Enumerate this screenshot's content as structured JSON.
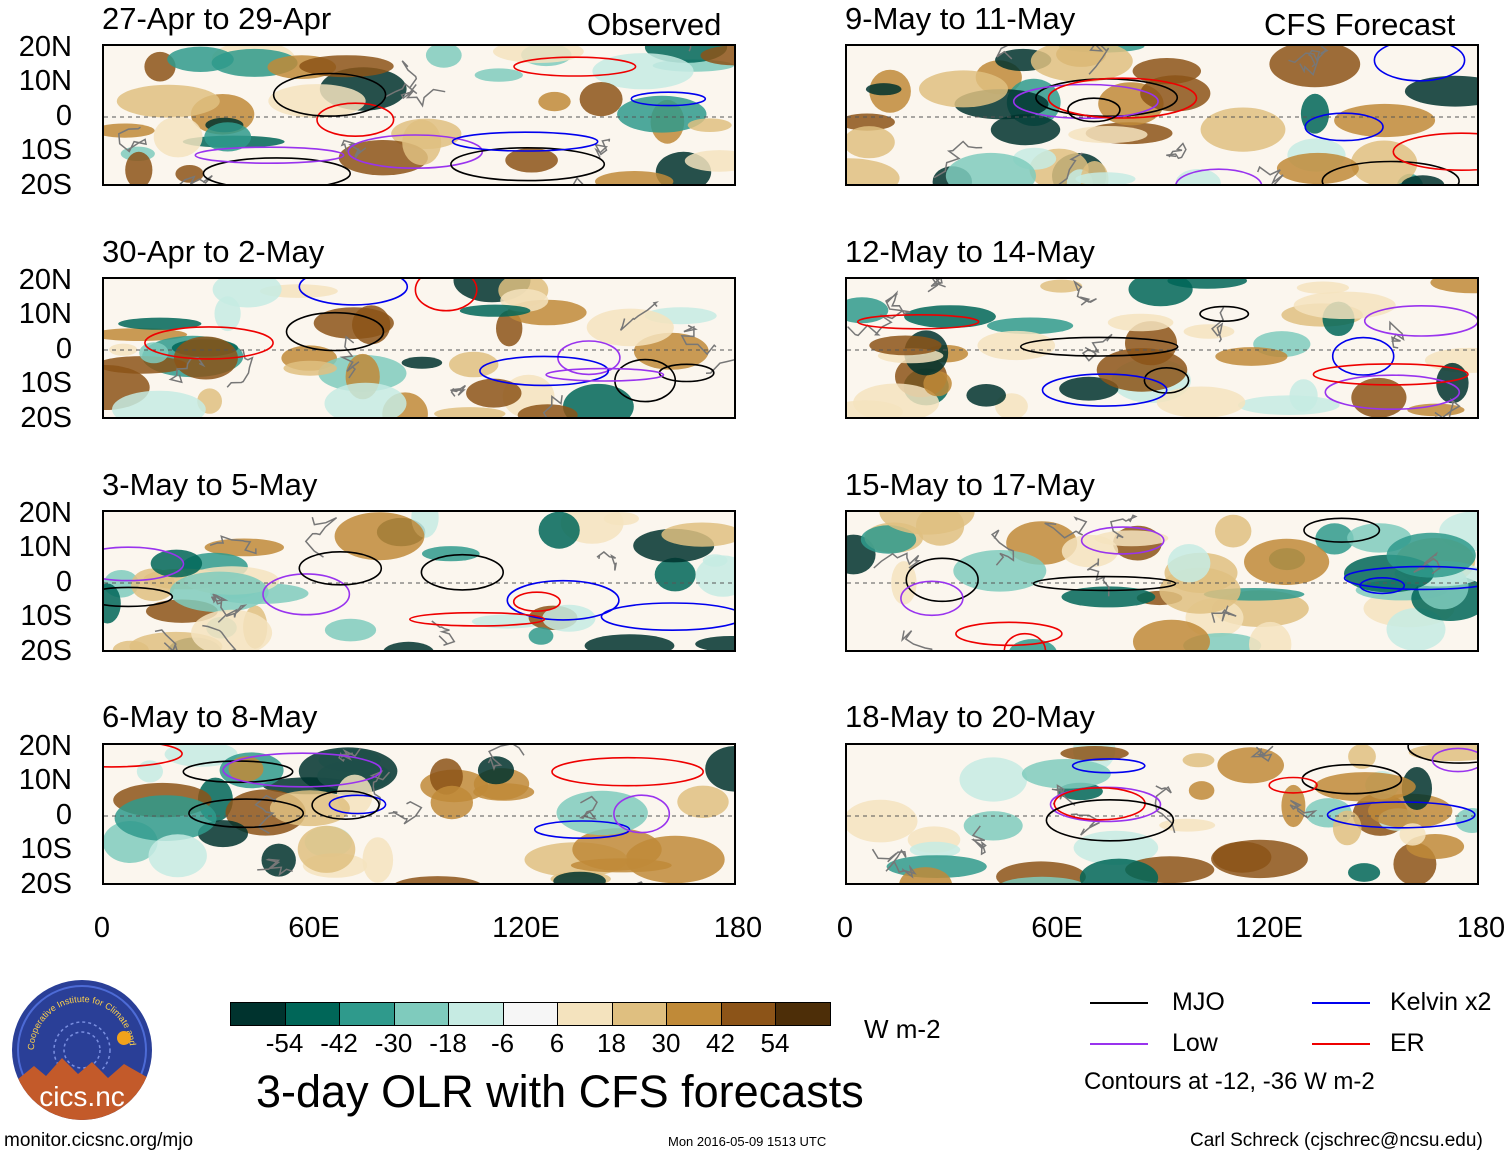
{
  "headers": {
    "left": "Observed",
    "right": "CFS Forecast"
  },
  "latitude_labels": [
    "20N",
    "10N",
    "0",
    "10S",
    "20S"
  ],
  "longitude_labels": [
    "0",
    "60E",
    "120E",
    "180"
  ],
  "panels": {
    "left": [
      {
        "title": "27-Apr to 29-Apr"
      },
      {
        "title": "30-Apr to 2-May"
      },
      {
        "title": "3-May to 5-May"
      },
      {
        "title": "6-May to 8-May"
      }
    ],
    "right": [
      {
        "title": "9-May to 11-May"
      },
      {
        "title": "12-May to 14-May"
      },
      {
        "title": "15-May to 17-May"
      },
      {
        "title": "18-May to 20-May"
      }
    ]
  },
  "colorbar": {
    "ticks": [
      "-54",
      "-42",
      "-30",
      "-18",
      "-6",
      "6",
      "18",
      "30",
      "42",
      "54"
    ],
    "colors": [
      "#00332e",
      "#006658",
      "#2f9a8c",
      "#7fcbbd",
      "#c6ebe3",
      "#f6f6f6",
      "#f4e3be",
      "#dfbf80",
      "#c08a38",
      "#8c5418",
      "#4d2e08"
    ],
    "units": "W m-2"
  },
  "title": "3-day OLR with CFS forecasts",
  "legend": {
    "items": [
      {
        "label": "MJO",
        "color": "#000000"
      },
      {
        "label": "Kelvin x2",
        "color": "#0000ee"
      },
      {
        "label": "Low",
        "color": "#9933ee"
      },
      {
        "label": "ER",
        "color": "#ee0000"
      }
    ],
    "note": "Contours at -12, -36 W m-2"
  },
  "footer": {
    "url": "monitor.cicsnc.org/mjo",
    "timestamp": "Mon 2016-05-09 1513 UTC",
    "credit": "Carl Schreck (cjschrec@ncsu.edu)"
  },
  "logo": {
    "text": "cics.nc",
    "ring_text": "Cooperative Institute for Climate and Satellites"
  }
}
